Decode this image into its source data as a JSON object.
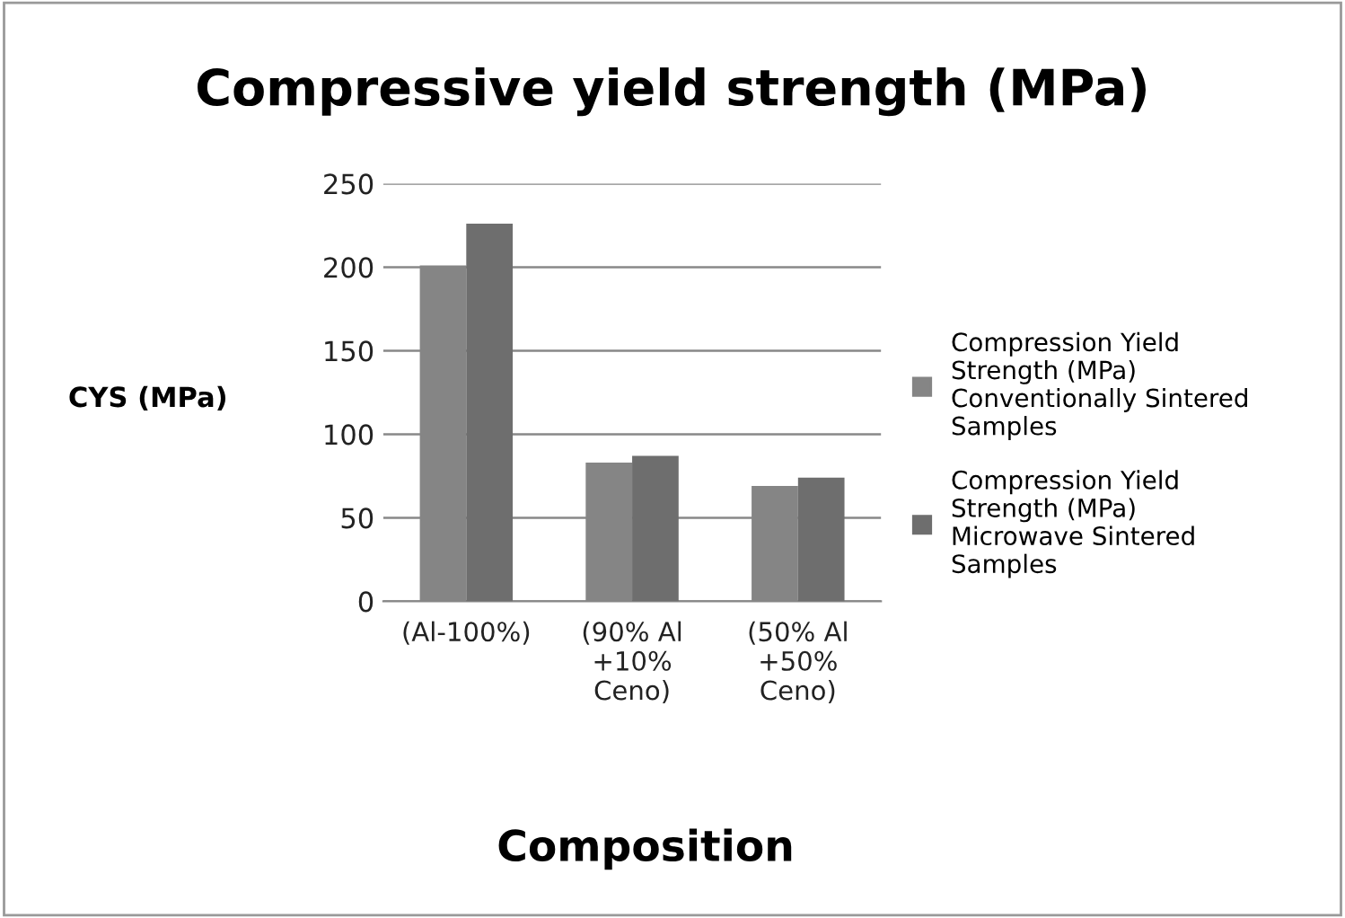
{
  "chart_data": {
    "type": "bar",
    "title": "Compressive yield strength (MPa)",
    "xlabel": "Composition",
    "ylabel": "CYS (MPa)",
    "categories": [
      "(Al-100%)",
      "(90% Al\n+10%\nCeno)",
      "(50% Al\n+50%\nCeno)"
    ],
    "series": [
      {
        "name": "Compression Yield\nStrength (MPa)\nConventionally Sintered\nSamples",
        "color": "#858585",
        "values": [
          201,
          83,
          69
        ]
      },
      {
        "name": "Compression Yield\nStrength (MPa)\nMicrowave Sintered\nSamples",
        "color": "#6e6e6e",
        "values": [
          226,
          87,
          74
        ]
      }
    ],
    "ylim": [
      0,
      250
    ],
    "yticks": [
      0,
      50,
      100,
      150,
      200,
      250
    ],
    "grid": "y",
    "legend": "right"
  }
}
